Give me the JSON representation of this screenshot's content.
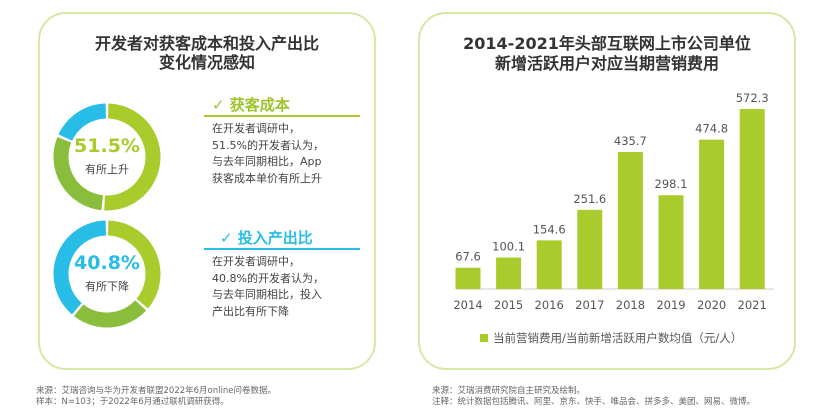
{
  "left": {
    "title_line1": "开发者对获客成本和投入产出比",
    "title_line2": "变化情况感知",
    "items": [
      {
        "value": "51.5%",
        "label": "有所上升",
        "heading": "✓ 获客成本",
        "heading_color": "#9cc42a",
        "desc": [
          "在开发者调研中，",
          "51.5%的开发者认为，",
          "与去年同期相比，App",
          "获客成本单价有所上升"
        ]
      },
      {
        "value": "40.8%",
        "label": "有所下降",
        "heading": "✓ 投入产出比",
        "heading_color": "#27bde6",
        "desc": [
          "在开发者调研中，",
          "40.8%的开发者认为，",
          "与去年同期相比，投入",
          "产出比有所下降"
        ]
      }
    ],
    "footnote": [
      "来源：艾瑞咨询与华为开发者联盟2022年6月online问卷数据。",
      "样本：N=103；于2022年6月通过联机调研获得。"
    ]
  },
  "colors": {
    "light_green": "#a9cb2c",
    "dark_green": "#8bbd3c",
    "blue": "#27bde6",
    "bar": "#a9cb2c"
  },
  "chart_data": {
    "type": "bar",
    "title": "2014-2021年头部互联网上市公司单位新增活跃用户对应当期营销费用",
    "title_line1": "2014-2021年头部互联网上市公司单位",
    "title_line2": "新增活跃用户对应当期营销费用",
    "categories": [
      "2014",
      "2015",
      "2016",
      "2017",
      "2018",
      "2019",
      "2020",
      "2021"
    ],
    "values": [
      67.6,
      100.1,
      154.6,
      251.6,
      435.7,
      298.1,
      474.8,
      572.3
    ],
    "value_labels": [
      "67.6",
      "100.1",
      "154.6",
      "251.6",
      "435.7",
      "298.1",
      "474.8",
      "572.3"
    ],
    "legend": "当前营销费用/当前新增活跃用户数均值（元/人）",
    "legend_position": "bottom",
    "grid": false
  },
  "right_footnote": [
    "来源：艾瑞消费研究院自主研究及绘制。",
    "注释：统计数据包括腾讯、阿里、京东、快手、唯品会、拼多多、美团、网易、微博。"
  ]
}
